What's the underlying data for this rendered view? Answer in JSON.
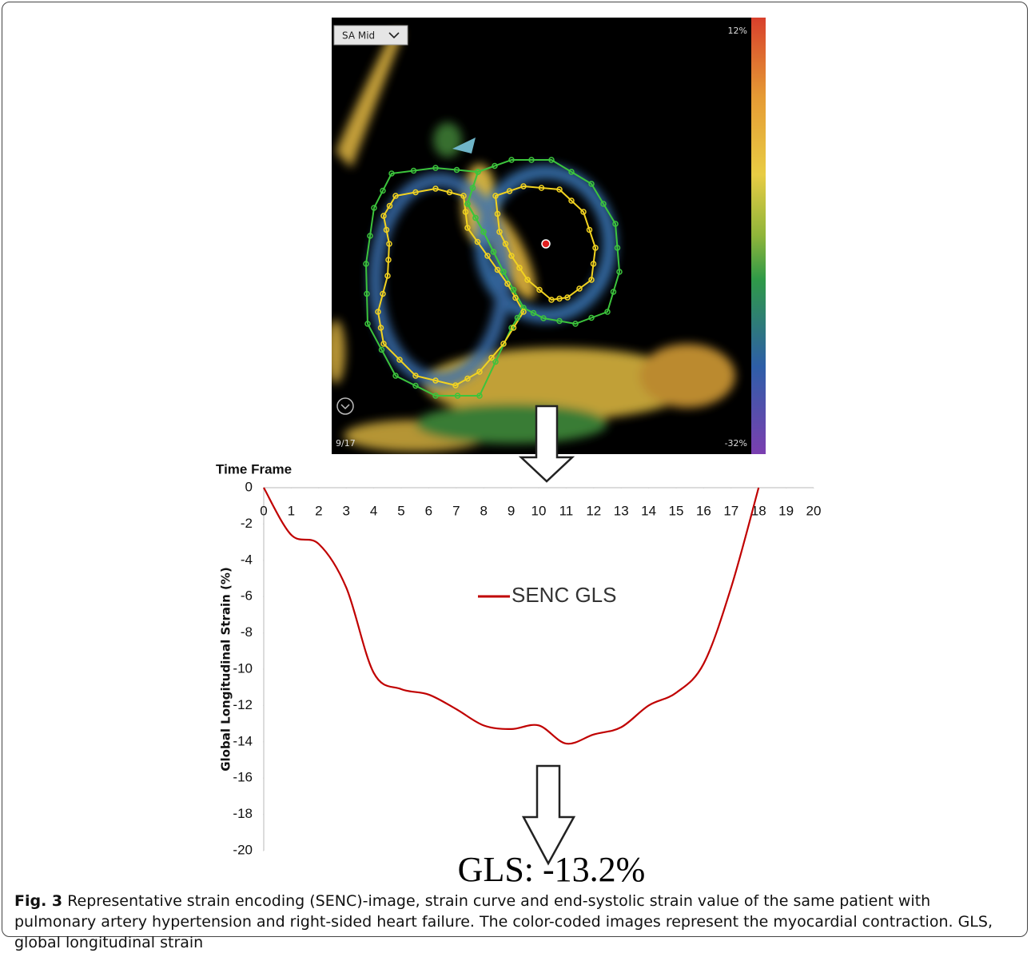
{
  "image": {
    "view_selector": "SA Mid",
    "scale_max": "12%",
    "scale_min": "-32%",
    "frame": "9/17"
  },
  "chart_data": {
    "type": "line",
    "x_title": "Time Frame",
    "y_title": "Global Longitudinal Strain (%)",
    "x": [
      0,
      1,
      2,
      3,
      4,
      5,
      6,
      7,
      8,
      9,
      10,
      11,
      12,
      13,
      14,
      15,
      16,
      17,
      18
    ],
    "series": [
      {
        "name": "SENC GLS",
        "color": "#c00000",
        "values": [
          0,
          -2.6,
          -3.1,
          -5.5,
          -10.2,
          -11.1,
          -11.4,
          -12.2,
          -13.1,
          -13.3,
          -13.1,
          -14.1,
          -13.6,
          -13.2,
          -12.0,
          -11.3,
          -9.7,
          -5.5,
          0
        ]
      }
    ],
    "xlim": [
      0,
      20
    ],
    "xticks": [
      0,
      1,
      2,
      3,
      4,
      5,
      6,
      7,
      8,
      9,
      10,
      11,
      12,
      13,
      14,
      15,
      16,
      17,
      18,
      19,
      20
    ],
    "ylim": [
      -20,
      0
    ],
    "yticks": [
      0,
      -2,
      -4,
      -6,
      -8,
      -10,
      -12,
      -14,
      -16,
      -18,
      -20
    ],
    "grid": false,
    "legend": "center"
  },
  "result": "GLS: -13.2%",
  "caption": {
    "label": "Fig. 3",
    "text": "Representative strain encoding (SENC)-image, strain curve and end-systolic strain value of the same patient with pulmonary artery hypertension and right-sided heart failure. The color-coded images represent the myocardial contraction. GLS, global longitudinal strain"
  }
}
